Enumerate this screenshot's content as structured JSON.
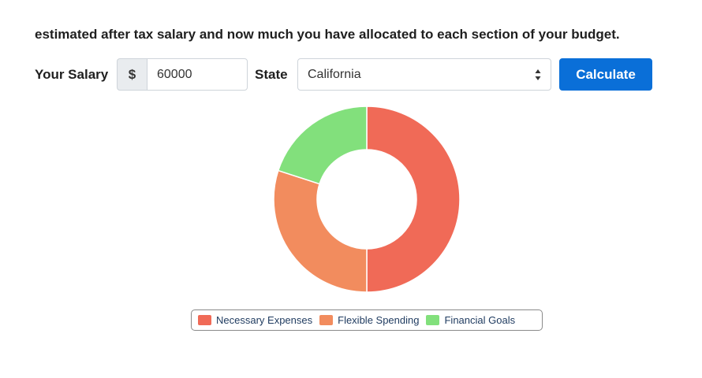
{
  "intro_text": "estimated after tax salary and now much you have allocated to each section of your budget.",
  "form": {
    "salary_label": "Your Salary",
    "currency_symbol": "$",
    "salary_value": "60000",
    "state_label": "State",
    "state_selected": "California",
    "calculate_label": "Calculate"
  },
  "icons": {
    "select": "up-down-caret-icon"
  },
  "colors": {
    "necessary": "#f06a57",
    "flexible": "#f28c5e",
    "goals": "#82e07c",
    "button": "#0a6fd8"
  },
  "chart_data": {
    "type": "pie",
    "style": "doughnut",
    "legend_position": "bottom",
    "categories": [
      "Necessary Expenses",
      "Flexible Spending",
      "Financial Goals"
    ],
    "values": [
      50,
      30,
      20
    ],
    "colors": [
      "#f06a57",
      "#f28c5e",
      "#82e07c"
    ]
  }
}
